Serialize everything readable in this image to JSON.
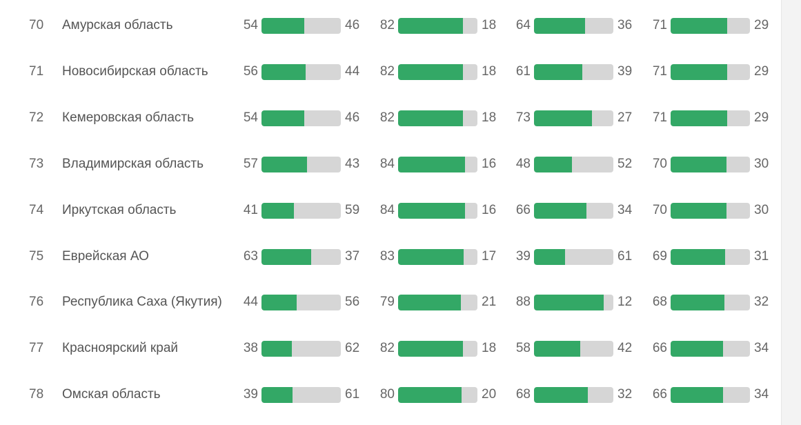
{
  "rows": [
    {
      "rank": "70",
      "region": "Амурская область",
      "metrics": [
        {
          "left": 54,
          "right": 46
        },
        {
          "left": 82,
          "right": 18
        },
        {
          "left": 64,
          "right": 36
        },
        {
          "left": 71,
          "right": 29
        }
      ]
    },
    {
      "rank": "71",
      "region": "Новосибирская область",
      "metrics": [
        {
          "left": 56,
          "right": 44
        },
        {
          "left": 82,
          "right": 18
        },
        {
          "left": 61,
          "right": 39
        },
        {
          "left": 71,
          "right": 29
        }
      ]
    },
    {
      "rank": "72",
      "region": "Кемеровская область",
      "metrics": [
        {
          "left": 54,
          "right": 46
        },
        {
          "left": 82,
          "right": 18
        },
        {
          "left": 73,
          "right": 27
        },
        {
          "left": 71,
          "right": 29
        }
      ]
    },
    {
      "rank": "73",
      "region": "Владимирская область",
      "metrics": [
        {
          "left": 57,
          "right": 43
        },
        {
          "left": 84,
          "right": 16
        },
        {
          "left": 48,
          "right": 52
        },
        {
          "left": 70,
          "right": 30
        }
      ]
    },
    {
      "rank": "74",
      "region": "Иркутская область",
      "metrics": [
        {
          "left": 41,
          "right": 59
        },
        {
          "left": 84,
          "right": 16
        },
        {
          "left": 66,
          "right": 34
        },
        {
          "left": 70,
          "right": 30
        }
      ]
    },
    {
      "rank": "75",
      "region": "Еврейская АО",
      "metrics": [
        {
          "left": 63,
          "right": 37
        },
        {
          "left": 83,
          "right": 17
        },
        {
          "left": 39,
          "right": 61
        },
        {
          "left": 69,
          "right": 31
        }
      ]
    },
    {
      "rank": "76",
      "region": "Республика Саха (Якутия)",
      "metrics": [
        {
          "left": 44,
          "right": 56
        },
        {
          "left": 79,
          "right": 21
        },
        {
          "left": 88,
          "right": 12
        },
        {
          "left": 68,
          "right": 32
        }
      ]
    },
    {
      "rank": "77",
      "region": "Красноярский край",
      "metrics": [
        {
          "left": 38,
          "right": 62
        },
        {
          "left": 82,
          "right": 18
        },
        {
          "left": 58,
          "right": 42
        },
        {
          "left": 66,
          "right": 34
        }
      ]
    },
    {
      "rank": "78",
      "region": "Омская область",
      "metrics": [
        {
          "left": 39,
          "right": 61
        },
        {
          "left": 80,
          "right": 20
        },
        {
          "left": 68,
          "right": 32
        },
        {
          "left": 66,
          "right": 34
        }
      ]
    }
  ],
  "colors": {
    "fill": "#33a866",
    "track": "#d6d6d6"
  }
}
